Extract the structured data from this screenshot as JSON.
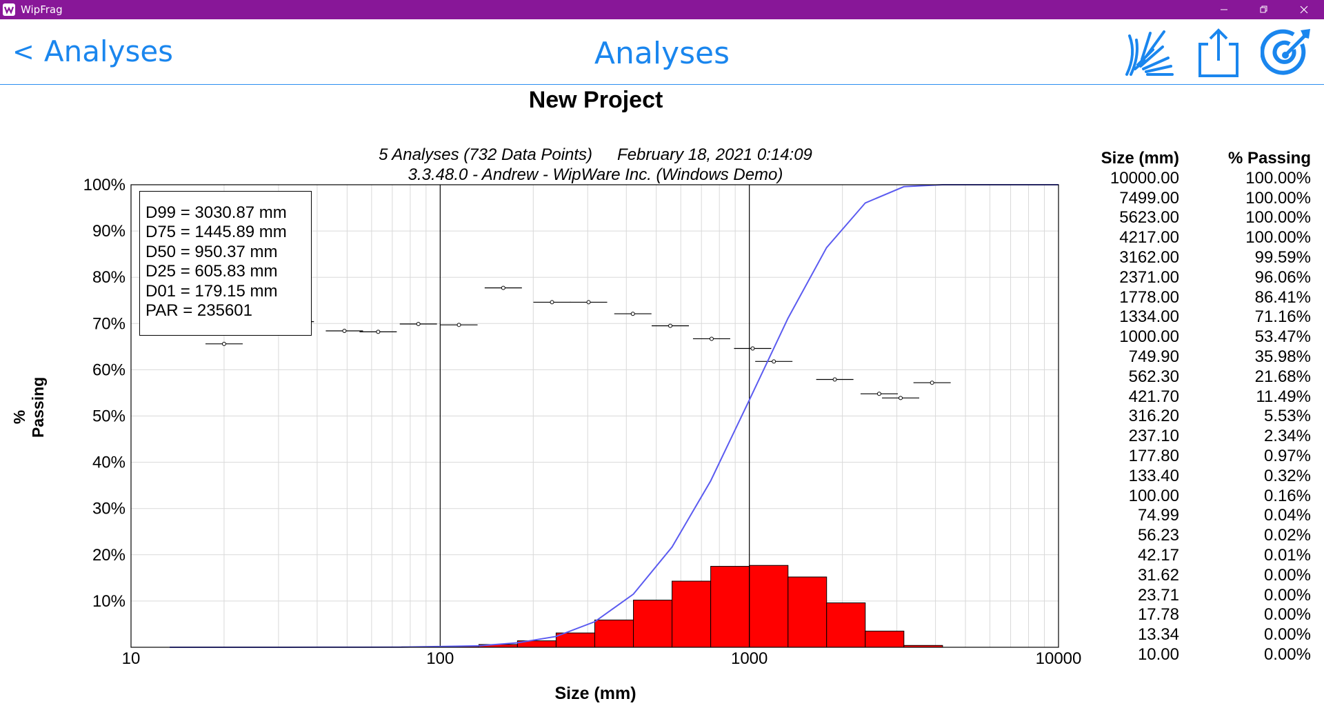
{
  "window": {
    "app_name": "WipFrag"
  },
  "nav": {
    "back_label": "Analyses",
    "back_chevron": "<",
    "title": "Analyses",
    "icons": [
      "blast-icon",
      "share-icon",
      "target-icon"
    ]
  },
  "project_title": "New Project",
  "subtitle": {
    "line1_left": "5 Analyses (732 Data Points)",
    "line1_right": "February 18, 2021 0:14:09",
    "line2": "3.3.48.0  -  Andrew - WipWare Inc. (Windows Demo)"
  },
  "stats": {
    "d99": "D99 = 3030.87 mm",
    "d75": "D75 = 1445.89 mm",
    "d50": "D50 = 950.37 mm",
    "d25": "D25 = 605.83 mm",
    "d01": "D01 = 179.15 mm",
    "par": "PAR = 235601"
  },
  "table": {
    "col_size": "Size (mm)",
    "col_passing": "% Passing",
    "rows": [
      [
        "10000.00",
        "100.00%"
      ],
      [
        "7499.00",
        "100.00%"
      ],
      [
        "5623.00",
        "100.00%"
      ],
      [
        "4217.00",
        "100.00%"
      ],
      [
        "3162.00",
        "99.59%"
      ],
      [
        "2371.00",
        "96.06%"
      ],
      [
        "1778.00",
        "86.41%"
      ],
      [
        "1334.00",
        "71.16%"
      ],
      [
        "1000.00",
        "53.47%"
      ],
      [
        "749.90",
        "35.98%"
      ],
      [
        "562.30",
        "21.68%"
      ],
      [
        "421.70",
        "11.49%"
      ],
      [
        "316.20",
        "5.53%"
      ],
      [
        "237.10",
        "2.34%"
      ],
      [
        "177.80",
        "0.97%"
      ],
      [
        "133.40",
        "0.32%"
      ],
      [
        "100.00",
        "0.16%"
      ],
      [
        "74.99",
        "0.04%"
      ],
      [
        "56.23",
        "0.02%"
      ],
      [
        "42.17",
        "0.01%"
      ],
      [
        "31.62",
        "0.00%"
      ],
      [
        "23.71",
        "0.00%"
      ],
      [
        "17.78",
        "0.00%"
      ],
      [
        "13.34",
        "0.00%"
      ],
      [
        "10.00",
        "0.00%"
      ]
    ]
  },
  "chart_data": {
    "type": "line",
    "title": "New Project",
    "xlabel": "Size (mm)",
    "ylabel": "% Passing",
    "x_scale": "log",
    "xlim": [
      10,
      10000
    ],
    "ylim": [
      0,
      100
    ],
    "x_ticks": [
      "10",
      "100",
      "1000",
      "10000"
    ],
    "y_ticks": [
      "10%",
      "20%",
      "30%",
      "40%",
      "50%",
      "60%",
      "70%",
      "80%",
      "90%",
      "100%"
    ],
    "grid": true,
    "colors": {
      "curve": "#5b5bf0",
      "bars": "#ff0000"
    },
    "cumulative_curve": {
      "x": [
        13.34,
        17.78,
        23.71,
        31.62,
        42.17,
        56.23,
        74.99,
        100,
        133.4,
        177.8,
        237.1,
        316.2,
        421.7,
        562.3,
        749.9,
        1000,
        1334,
        1778,
        2371,
        3162,
        4217,
        5623,
        7499,
        10000
      ],
      "y": [
        0,
        0,
        0,
        0,
        0.01,
        0.02,
        0.04,
        0.16,
        0.32,
        0.97,
        2.34,
        5.53,
        11.49,
        21.68,
        35.98,
        53.47,
        71.16,
        86.41,
        96.06,
        99.59,
        100,
        100,
        100,
        100
      ]
    },
    "histogram": {
      "bin_edges": [
        75,
        100,
        133.4,
        177.8,
        237.1,
        316.2,
        421.7,
        562.3,
        749.9,
        1000,
        1334,
        1778,
        2371,
        3162,
        4217
      ],
      "values": [
        0.1,
        0.2,
        0.6,
        1.4,
        3.1,
        5.9,
        10.2,
        14.3,
        17.5,
        17.7,
        15.2,
        9.6,
        3.5,
        0.4
      ]
    },
    "trend_points": {
      "x": [
        20,
        34,
        49,
        63,
        85,
        115,
        160,
        230,
        302,
        420,
        555,
        755,
        1025,
        1200,
        1890,
        2630,
        3085,
        3900
      ],
      "y": [
        65.6,
        70.4,
        68.4,
        68.2,
        69.9,
        69.7,
        77.7,
        74.6,
        74.6,
        72.1,
        69.5,
        66.7,
        64.6,
        61.8,
        57.9,
        54.8,
        53.9,
        57.2
      ]
    },
    "vertical_markers": [
      100,
      1000
    ]
  }
}
